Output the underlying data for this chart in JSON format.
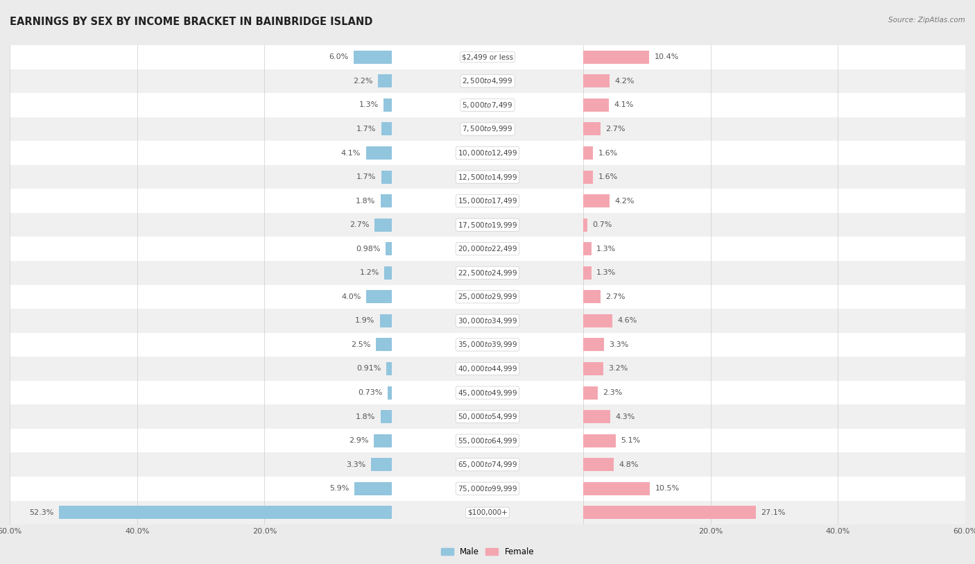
{
  "title": "EARNINGS BY SEX BY INCOME BRACKET IN BAINBRIDGE ISLAND",
  "source": "Source: ZipAtlas.com",
  "categories": [
    "$2,499 or less",
    "$2,500 to $4,999",
    "$5,000 to $7,499",
    "$7,500 to $9,999",
    "$10,000 to $12,499",
    "$12,500 to $14,999",
    "$15,000 to $17,499",
    "$17,500 to $19,999",
    "$20,000 to $22,499",
    "$22,500 to $24,999",
    "$25,000 to $29,999",
    "$30,000 to $34,999",
    "$35,000 to $39,999",
    "$40,000 to $44,999",
    "$45,000 to $49,999",
    "$50,000 to $54,999",
    "$55,000 to $64,999",
    "$65,000 to $74,999",
    "$75,000 to $99,999",
    "$100,000+"
  ],
  "male_values": [
    6.0,
    2.2,
    1.3,
    1.7,
    4.1,
    1.7,
    1.8,
    2.7,
    0.98,
    1.2,
    4.0,
    1.9,
    2.5,
    0.91,
    0.73,
    1.8,
    2.9,
    3.3,
    5.9,
    52.3
  ],
  "female_values": [
    10.4,
    4.2,
    4.1,
    2.7,
    1.6,
    1.6,
    4.2,
    0.7,
    1.3,
    1.3,
    2.7,
    4.6,
    3.3,
    3.2,
    2.3,
    4.3,
    5.1,
    4.8,
    10.5,
    27.1
  ],
  "male_color": "#92c5de",
  "female_color": "#f4a6b0",
  "axis_limit": 60.0,
  "bg_color": "#ebebeb",
  "row_bg_color_odd": "#f5f5f5",
  "row_bg_color_even": "#e8e8e8",
  "bar_label_color": "#555555",
  "cat_label_color": "#444444",
  "title_fontsize": 10.5,
  "label_fontsize": 8.0,
  "source_fontsize": 7.5,
  "legend_fontsize": 8.5,
  "value_fontsize": 8.0
}
